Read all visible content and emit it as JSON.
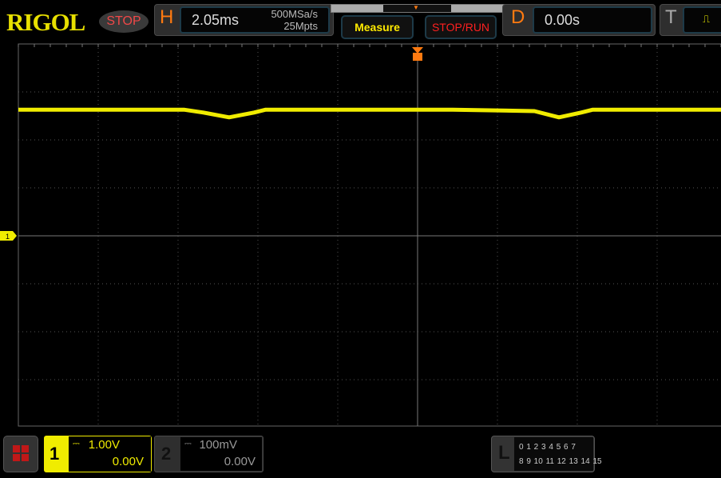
{
  "brand": "RIGOL",
  "run_state": "STOP",
  "horizontal": {
    "label": "H",
    "timebase": "2.05ms",
    "sample_rate": "500MSa/s",
    "memory_depth": "25Mpts"
  },
  "buttons": {
    "measure": "Measure",
    "stop_run": "STOP/RUN"
  },
  "delay": {
    "label": "D",
    "value": "0.00s"
  },
  "trigger": {
    "label": "T",
    "icon": "rising-edge-icon",
    "color": "#ffff00"
  },
  "channel1": {
    "number": "1",
    "scale": "1.00V",
    "offset": "0.00V",
    "color": "#f0ec00",
    "marker": "1"
  },
  "channel2": {
    "number": "2",
    "scale": "100mV",
    "offset": "0.00V"
  },
  "logic": {
    "label": "L",
    "row1": "0 1 2 3  4 5 6 7",
    "row2": "8 9 10 11 12 13 14 15"
  },
  "chart_data": {
    "type": "line",
    "xlabel": "",
    "ylabel": "",
    "x_unit": "ms",
    "y_unit": "V",
    "x_divisions": 10,
    "y_divisions": 8,
    "grid": true,
    "series": [
      {
        "color": "#f0ec00",
        "x": [
          -10.25,
          -6.0,
          -5.5,
          -4.84,
          -4.2,
          -3.9,
          0,
          0.9,
          3.0,
          3.63,
          4.2,
          4.5,
          8.0
        ],
        "y": [
          2.63,
          2.63,
          2.57,
          2.47,
          2.57,
          2.63,
          2.63,
          2.63,
          2.6,
          2.47,
          2.57,
          2.63,
          2.63
        ]
      }
    ]
  }
}
